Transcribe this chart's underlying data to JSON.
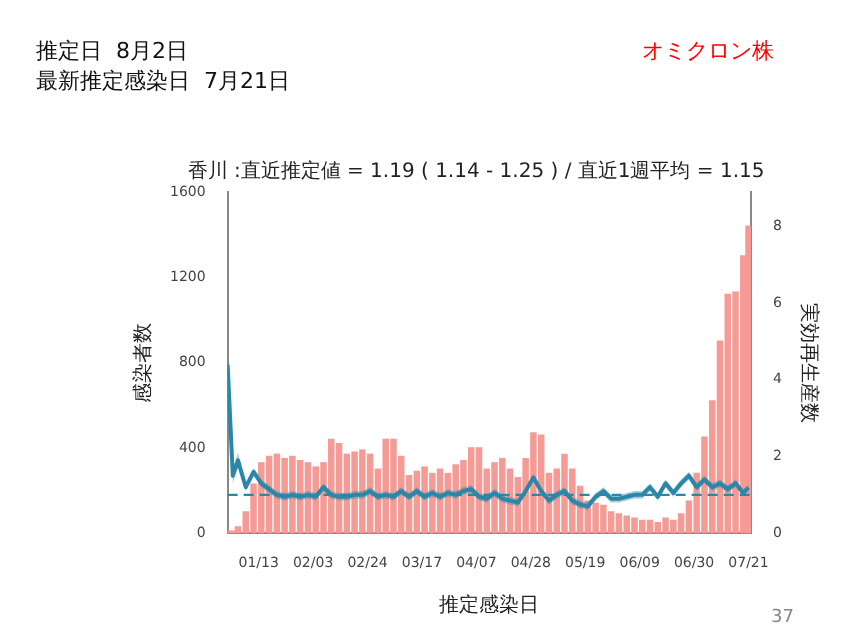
{
  "chart_data": {
    "type": "bar",
    "title": "香川 :直近推定値 = 1.19 ( 1.14 - 1.25 ) / 直近1週平均 = 1.15",
    "xlabel": "推定感染日",
    "ylabel": "感染者数",
    "y2label": "実効再生産数",
    "annotations": [
      "推定日  8月2日",
      "最新推定感染日  7月21日",
      "オミクロン株",
      "37"
    ],
    "x": [
      "--01-01",
      "--01-03",
      "--01-05",
      "--01-08",
      "--01-11",
      "--01-14",
      "--01-17",
      "--01-20",
      "--01-23",
      "--01-26",
      "--01-29",
      "--02-01",
      "--02-04",
      "--02-07",
      "--02-10",
      "--02-13",
      "--02-16",
      "--02-19",
      "--02-22",
      "--02-25",
      "--02-28",
      "--03-03",
      "--03-06",
      "--03-09",
      "--03-12",
      "--03-15",
      "--03-18",
      "--03-21",
      "--03-24",
      "--03-27",
      "--03-30",
      "--04-02",
      "--04-05",
      "--04-08",
      "--04-11",
      "--04-14",
      "--04-17",
      "--04-20",
      "--04-23",
      "--04-26",
      "--04-29",
      "--05-02",
      "--05-05",
      "--05-08",
      "--05-11",
      "--05-14",
      "--05-17",
      "--05-20",
      "--05-23",
      "--05-26",
      "--05-29",
      "--06-01",
      "--06-04",
      "--06-07",
      "--06-10",
      "--06-13",
      "--06-16",
      "--06-19",
      "--06-22",
      "--06-25",
      "--06-28",
      "--07-01",
      "--07-04",
      "--07-07",
      "--07-10",
      "--07-13",
      "--07-16",
      "--07-19",
      "--07-21"
    ],
    "series": [
      {
        "color": "#f59a94",
        "values": [
          10,
          10,
          30,
          100,
          230,
          330,
          360,
          370,
          350,
          360,
          340,
          330,
          310,
          330,
          440,
          420,
          370,
          380,
          390,
          370,
          300,
          440,
          440,
          360,
          270,
          290,
          310,
          280,
          300,
          280,
          320,
          340,
          400,
          400,
          300,
          330,
          350,
          300,
          260,
          350,
          470,
          460,
          280,
          300,
          370,
          300,
          220,
          150,
          140,
          130,
          100,
          90,
          80,
          70,
          60,
          60,
          50,
          70,
          60,
          90,
          150,
          280,
          450,
          620,
          900,
          1120,
          1130,
          1300,
          1440
        ]
      },
      {
        "type": "line",
        "axis": "y2",
        "color": "#2a87a8",
        "values": [
          4.4,
          1.5,
          1.9,
          1.2,
          1.6,
          1.3,
          1.15,
          1.0,
          0.95,
          1.0,
          0.95,
          1.0,
          0.95,
          1.2,
          1.0,
          0.95,
          0.95,
          1.0,
          1.0,
          1.1,
          0.95,
          1.0,
          0.95,
          1.1,
          0.95,
          1.1,
          0.95,
          1.05,
          0.95,
          1.05,
          1.0,
          1.1,
          1.15,
          0.95,
          0.9,
          1.05,
          0.9,
          0.85,
          0.8,
          1.1,
          1.45,
          1.1,
          0.85,
          1.0,
          1.1,
          0.85,
          0.75,
          0.7,
          0.95,
          1.1,
          0.9,
          0.9,
          0.95,
          1.0,
          1.0,
          1.2,
          0.95,
          1.3,
          1.05,
          1.3,
          1.5,
          1.2,
          1.4,
          1.2,
          1.3,
          1.15,
          1.3,
          1.05,
          1.19
        ],
        "lower": [
          3.9,
          1.3,
          1.7,
          1.1,
          1.5,
          1.2,
          1.05,
          0.9,
          0.85,
          0.9,
          0.85,
          0.9,
          0.85,
          1.1,
          0.9,
          0.85,
          0.85,
          0.9,
          0.9,
          1.0,
          0.85,
          0.9,
          0.85,
          1.0,
          0.85,
          1.0,
          0.85,
          0.95,
          0.85,
          0.95,
          0.9,
          1.0,
          1.05,
          0.85,
          0.8,
          0.95,
          0.8,
          0.75,
          0.7,
          1.0,
          1.35,
          1.0,
          0.75,
          0.9,
          1.0,
          0.75,
          0.65,
          0.6,
          0.85,
          1.0,
          0.8,
          0.8,
          0.85,
          0.9,
          0.9,
          1.1,
          0.85,
          1.2,
          0.95,
          1.2,
          1.4,
          1.1,
          1.3,
          1.1,
          1.2,
          1.05,
          1.2,
          0.95,
          1.14
        ],
        "upper": [
          4.9,
          1.7,
          2.1,
          1.3,
          1.7,
          1.4,
          1.25,
          1.1,
          1.05,
          1.1,
          1.05,
          1.1,
          1.05,
          1.3,
          1.1,
          1.05,
          1.05,
          1.1,
          1.1,
          1.2,
          1.05,
          1.1,
          1.05,
          1.2,
          1.05,
          1.2,
          1.05,
          1.15,
          1.05,
          1.15,
          1.1,
          1.2,
          1.25,
          1.05,
          1.0,
          1.15,
          1.0,
          0.95,
          0.9,
          1.2,
          1.55,
          1.2,
          0.95,
          1.1,
          1.2,
          0.95,
          0.85,
          0.8,
          1.05,
          1.2,
          1.0,
          1.0,
          1.05,
          1.1,
          1.1,
          1.3,
          1.05,
          1.4,
          1.15,
          1.4,
          1.6,
          1.3,
          1.5,
          1.3,
          1.4,
          1.25,
          1.4,
          1.15,
          1.25
        ]
      }
    ],
    "xlim": [
      "--01-01",
      "--07-22"
    ],
    "xticks": [
      {
        "value": "--01-13",
        "label": "01/13"
      },
      {
        "value": "--02-03",
        "label": "02/03"
      },
      {
        "value": "--02-24",
        "label": "02/24"
      },
      {
        "value": "--03-17",
        "label": "03/17"
      },
      {
        "value": "--04-07",
        "label": "04/07"
      },
      {
        "value": "--04-28",
        "label": "04/28"
      },
      {
        "value": "--05-19",
        "label": "05/19"
      },
      {
        "value": "--06-09",
        "label": "06/09"
      },
      {
        "value": "--06-30",
        "label": "06/30"
      },
      {
        "value": "--07-21",
        "label": "07/21"
      }
    ],
    "ylim": [
      0,
      1600
    ],
    "yticks": [
      0,
      400,
      800,
      1200,
      1600
    ],
    "y2lim": [
      0,
      8.9
    ],
    "y2ticks": [
      0,
      2,
      4,
      6,
      8
    ],
    "ref_lines": [
      {
        "axis": "y2",
        "value": 1,
        "color": "#2a87a8",
        "line_style": "dashed"
      }
    ],
    "grid": false,
    "legend": false,
    "marker": "none",
    "line_style": "solid"
  }
}
